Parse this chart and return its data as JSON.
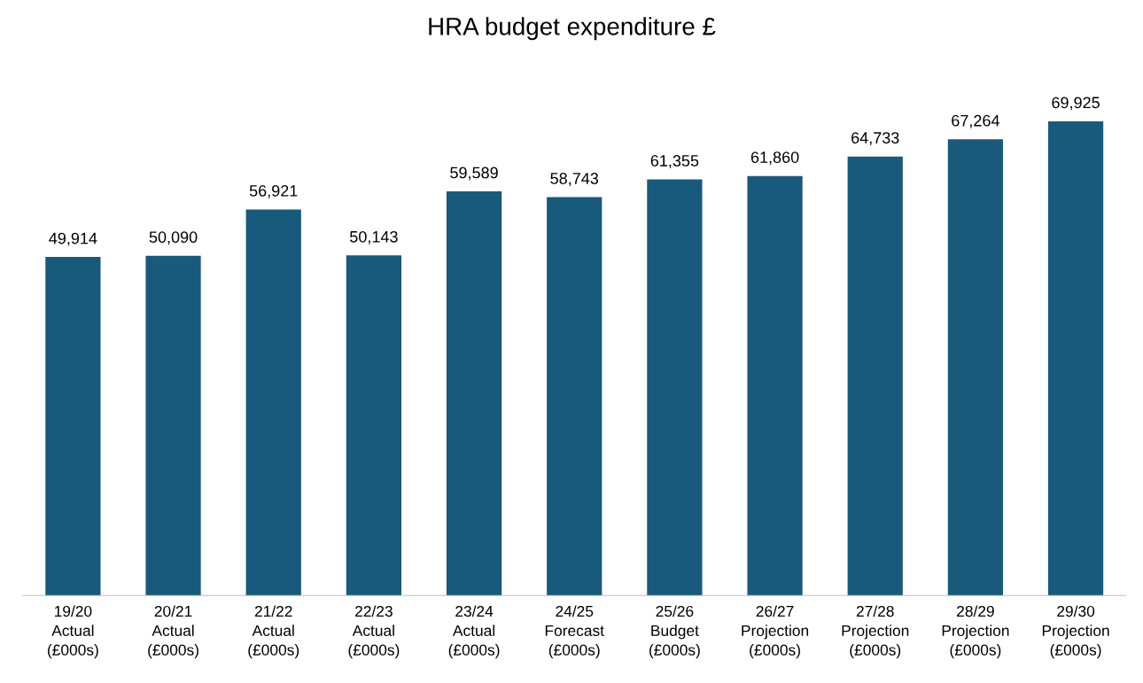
{
  "chart_data": {
    "type": "bar",
    "title": "HRA budget expenditure £",
    "categories": [
      "19/20\nActual\n(£000s)",
      "20/21\nActual\n(£000s)",
      "21/22\nActual\n(£000s)",
      "22/23\nActual\n(£000s)",
      "23/24\nActual\n(£000s)",
      "24/25\nForecast\n(£000s)",
      "25/26\nBudget\n(£000s)",
      "26/27\nProjection\n(£000s)",
      "27/28\nProjection\n(£000s)",
      "28/29\nProjection\n(£000s)",
      "29/30\nProjection\n(£000s)"
    ],
    "values": [
      49914,
      50090,
      56921,
      50143,
      59589,
      58743,
      61355,
      61860,
      64733,
      67264,
      69925
    ],
    "color": "#175a7c",
    "value_labels": [
      "49,914",
      "50,090",
      "56,921",
      "50,143",
      "59,589",
      "58,743",
      "61,355",
      "61,860",
      "64,733",
      "67,264",
      "69,925"
    ],
    "grid": false,
    "legend": false
  }
}
